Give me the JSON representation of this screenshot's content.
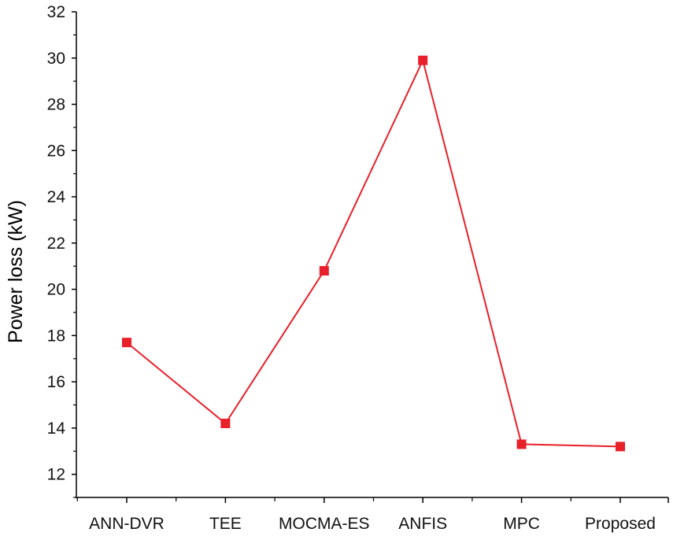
{
  "chart_data": {
    "type": "line",
    "title": "",
    "xlabel": "",
    "ylabel": "Power loss (kW)",
    "categories": [
      "ANN-DVR",
      "TEE",
      "MOCMA-ES",
      "ANFIS",
      "MPC",
      "Proposed"
    ],
    "series": [
      {
        "values": [
          17.7,
          14.2,
          20.8,
          29.9,
          13.3,
          13.2
        ],
        "color": "#e8202a",
        "marker": "square"
      }
    ],
    "ylim": [
      11,
      32
    ],
    "yticks": [
      12,
      14,
      16,
      18,
      20,
      22,
      24,
      26,
      28,
      30,
      32
    ],
    "grid": false,
    "legend": "none"
  }
}
